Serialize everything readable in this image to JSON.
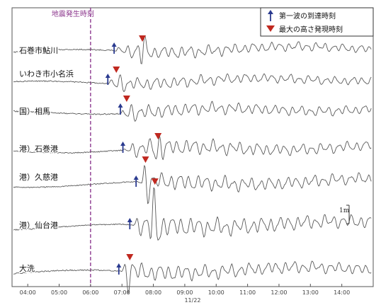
{
  "chart_data": {
    "type": "line",
    "event_label": "地震発生時刻",
    "event_time": "06:00",
    "x_tick_labels": [
      "04:00",
      "05:00",
      "06:00",
      "07:00",
      "08:00",
      "09:00",
      "10:00",
      "11:00",
      "12:00",
      "13:00",
      "14:00"
    ],
    "x_range_hours": [
      3.5,
      15.0
    ],
    "date_label": "11/22",
    "scale_label": "1m",
    "legend": {
      "first_wave": "第一波の到達時刻",
      "max_height": "最大の高さ発現時刻"
    },
    "colors": {
      "first_wave_marker": "#2a3a8f",
      "max_height_marker": "#c0281f",
      "event_line": "#8e3a8f",
      "trace": "#5a5a5a"
    },
    "stations": [
      {
        "name": "石巻市鮎川",
        "first_wave_time": 6.75,
        "max_height_time": 7.65
      },
      {
        "name": "いわき市小名浜",
        "first_wave_time": 6.55,
        "max_height_time": 6.82
      },
      {
        "name": "国）相馬",
        "first_wave_time": 6.95,
        "max_height_time": 7.15
      },
      {
        "name": "港）石巻港",
        "first_wave_time": 7.03,
        "max_height_time": 8.15
      },
      {
        "name": "港）久慈港",
        "first_wave_time": 7.45,
        "max_height_time": 7.75
      },
      {
        "name": "港）仙台港",
        "first_wave_time": 7.25,
        "max_height_time": 8.05
      },
      {
        "name": "大洗",
        "first_wave_time": 6.9,
        "max_height_time": 7.25
      }
    ]
  }
}
